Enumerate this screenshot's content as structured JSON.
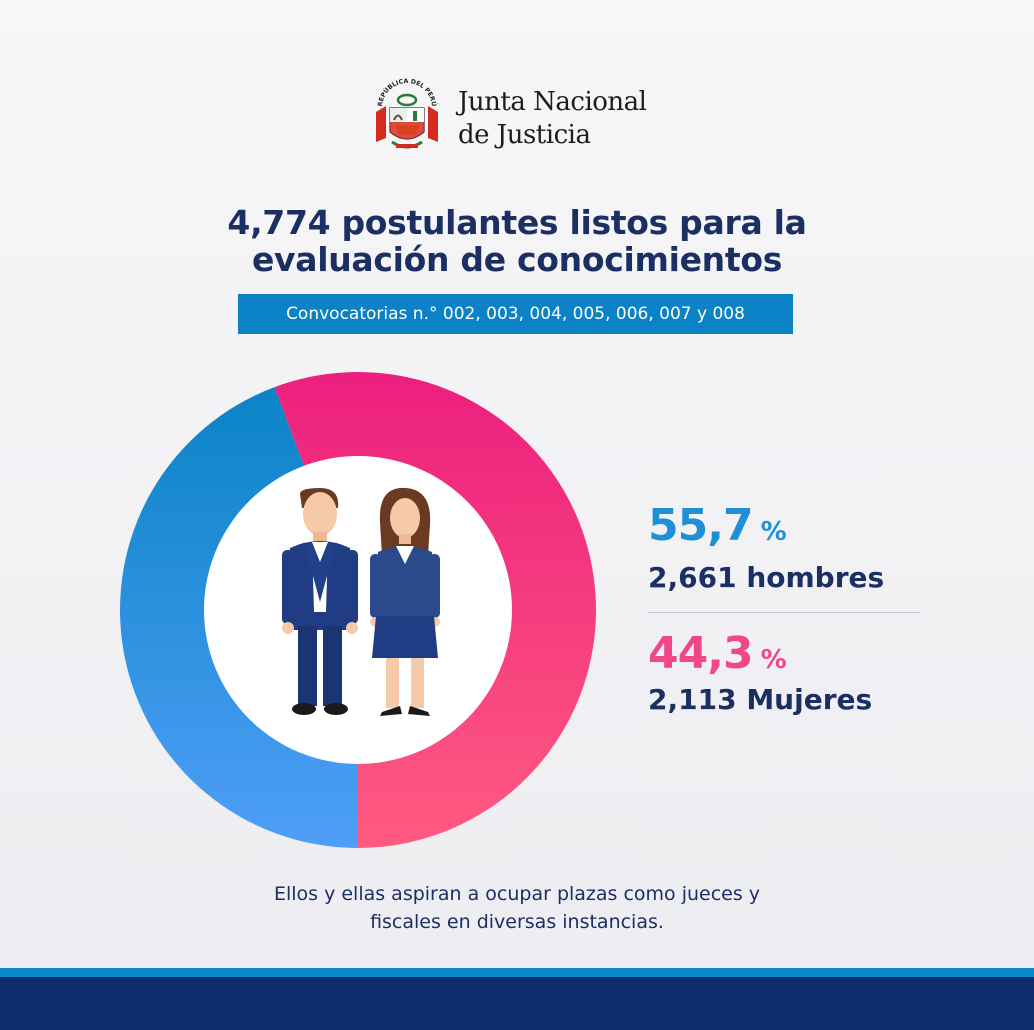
{
  "header": {
    "org_line1": "Junta Nacional",
    "org_line2": "de Justicia",
    "seal_text": "REPÚBLICA DEL PERÚ"
  },
  "title_line1": "4,774 postulantes listos para la",
  "title_line2": "evaluación de conocimientos",
  "subtitle": "Convocatorias n.° 002, 003, 004, 005, 006, 007 y 008",
  "stats": {
    "men_pct": "55,7",
    "men_pct_sign": "%",
    "men_count": "2,661 hombres",
    "women_pct": "44,3",
    "women_pct_sign": "%",
    "women_count": "2,113 Mujeres"
  },
  "footer_line1": "Ellos y ellas aspiran a ocupar plazas como jueces y",
  "footer_line2": "fiscales en diversas instancias.",
  "colors": {
    "navy": "#1b2f63",
    "men_blue": "#1f8fd6",
    "women_pink": "#f0468a",
    "banner_blue": "#0a82c5"
  },
  "chart_data": {
    "type": "pie",
    "variant": "donut",
    "categories": [
      "hombres",
      "Mujeres"
    ],
    "values": [
      55.7,
      44.3
    ],
    "counts": [
      2661,
      2113
    ],
    "total": 4774,
    "colors": [
      "#1f8fd6",
      "#f0468a"
    ]
  }
}
